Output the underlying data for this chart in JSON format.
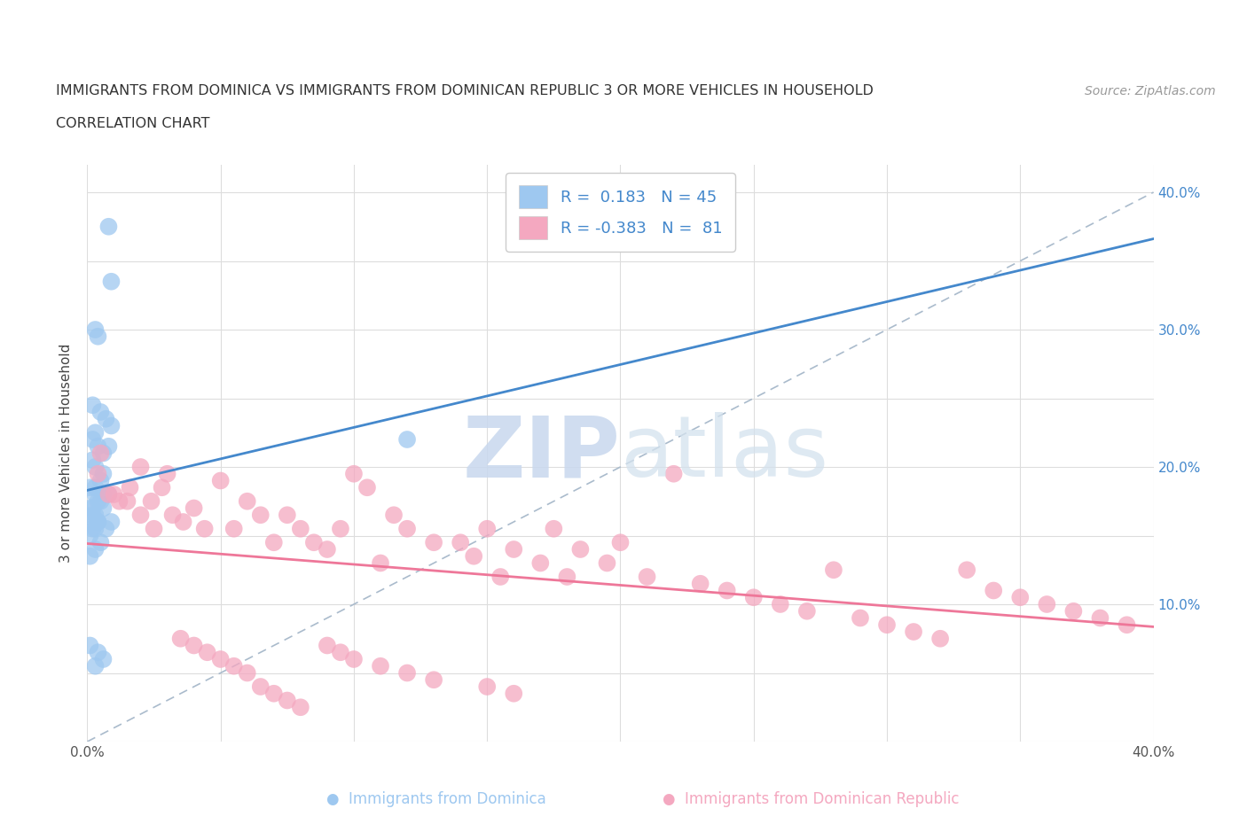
{
  "title_line1": "IMMIGRANTS FROM DOMINICA VS IMMIGRANTS FROM DOMINICAN REPUBLIC 3 OR MORE VEHICLES IN HOUSEHOLD",
  "title_line2": "CORRELATION CHART",
  "source_text": "Source: ZipAtlas.com",
  "ylabel": "3 or more Vehicles in Household",
  "xlim": [
    0.0,
    0.4
  ],
  "ylim": [
    0.0,
    0.42
  ],
  "xticks": [
    0.0,
    0.05,
    0.1,
    0.15,
    0.2,
    0.25,
    0.3,
    0.35,
    0.4
  ],
  "yticks": [
    0.0,
    0.05,
    0.1,
    0.15,
    0.2,
    0.25,
    0.3,
    0.35,
    0.4
  ],
  "r_dominica": 0.183,
  "n_dominica": 45,
  "r_dominican_republic": -0.383,
  "n_dominican_republic": 81,
  "color_dominica": "#9EC8F0",
  "color_dominican_republic": "#F4A8C0",
  "color_trend_dominica": "#4488CC",
  "color_trend_dominican_republic": "#EE7799",
  "color_ref_line": "#AABBCC",
  "watermark_color": "#D0DFF0",
  "background_color": "#FFFFFF",
  "legend_label_dominica": "R =  0.183   N = 45",
  "legend_label_dr": "R = -0.383   N =  81",
  "bottom_label_dominica": "Immigrants from Dominica",
  "bottom_label_dr": "Immigrants from Dominican Republic",
  "dominica_x": [
    0.008,
    0.009,
    0.003,
    0.004,
    0.002,
    0.005,
    0.007,
    0.009,
    0.003,
    0.002,
    0.004,
    0.006,
    0.002,
    0.003,
    0.008,
    0.001,
    0.003,
    0.005,
    0.006,
    0.002,
    0.003,
    0.004,
    0.002,
    0.006,
    0.003,
    0.004,
    0.001,
    0.008,
    0.003,
    0.005,
    0.002,
    0.006,
    0.004,
    0.003,
    0.001,
    0.007,
    0.005,
    0.003,
    0.001,
    0.009,
    0.006,
    0.003,
    0.001,
    0.004,
    0.12
  ],
  "dominica_y": [
    0.375,
    0.335,
    0.3,
    0.295,
    0.245,
    0.24,
    0.235,
    0.23,
    0.225,
    0.22,
    0.215,
    0.21,
    0.205,
    0.2,
    0.215,
    0.185,
    0.18,
    0.19,
    0.18,
    0.17,
    0.165,
    0.16,
    0.155,
    0.195,
    0.185,
    0.175,
    0.17,
    0.18,
    0.16,
    0.175,
    0.165,
    0.17,
    0.16,
    0.155,
    0.15,
    0.155,
    0.145,
    0.14,
    0.135,
    0.16,
    0.06,
    0.055,
    0.07,
    0.065,
    0.22
  ],
  "dr_x": [
    0.004,
    0.008,
    0.012,
    0.016,
    0.02,
    0.024,
    0.028,
    0.032,
    0.036,
    0.04,
    0.044,
    0.05,
    0.055,
    0.06,
    0.065,
    0.07,
    0.075,
    0.08,
    0.085,
    0.09,
    0.095,
    0.1,
    0.105,
    0.11,
    0.115,
    0.12,
    0.13,
    0.14,
    0.145,
    0.15,
    0.155,
    0.16,
    0.17,
    0.175,
    0.18,
    0.185,
    0.195,
    0.2,
    0.21,
    0.22,
    0.23,
    0.24,
    0.25,
    0.26,
    0.27,
    0.28,
    0.29,
    0.3,
    0.31,
    0.32,
    0.33,
    0.34,
    0.35,
    0.36,
    0.37,
    0.38,
    0.39,
    0.005,
    0.01,
    0.015,
    0.02,
    0.025,
    0.03,
    0.035,
    0.04,
    0.045,
    0.05,
    0.055,
    0.06,
    0.065,
    0.07,
    0.075,
    0.08,
    0.09,
    0.095,
    0.1,
    0.11,
    0.12,
    0.13,
    0.15,
    0.16
  ],
  "dr_y": [
    0.195,
    0.18,
    0.175,
    0.185,
    0.2,
    0.175,
    0.185,
    0.165,
    0.16,
    0.17,
    0.155,
    0.19,
    0.155,
    0.175,
    0.165,
    0.145,
    0.165,
    0.155,
    0.145,
    0.14,
    0.155,
    0.195,
    0.185,
    0.13,
    0.165,
    0.155,
    0.145,
    0.145,
    0.135,
    0.155,
    0.12,
    0.14,
    0.13,
    0.155,
    0.12,
    0.14,
    0.13,
    0.145,
    0.12,
    0.195,
    0.115,
    0.11,
    0.105,
    0.1,
    0.095,
    0.125,
    0.09,
    0.085,
    0.08,
    0.075,
    0.125,
    0.11,
    0.105,
    0.1,
    0.095,
    0.09,
    0.085,
    0.21,
    0.18,
    0.175,
    0.165,
    0.155,
    0.195,
    0.075,
    0.07,
    0.065,
    0.06,
    0.055,
    0.05,
    0.04,
    0.035,
    0.03,
    0.025,
    0.07,
    0.065,
    0.06,
    0.055,
    0.05,
    0.045,
    0.04,
    0.035
  ]
}
